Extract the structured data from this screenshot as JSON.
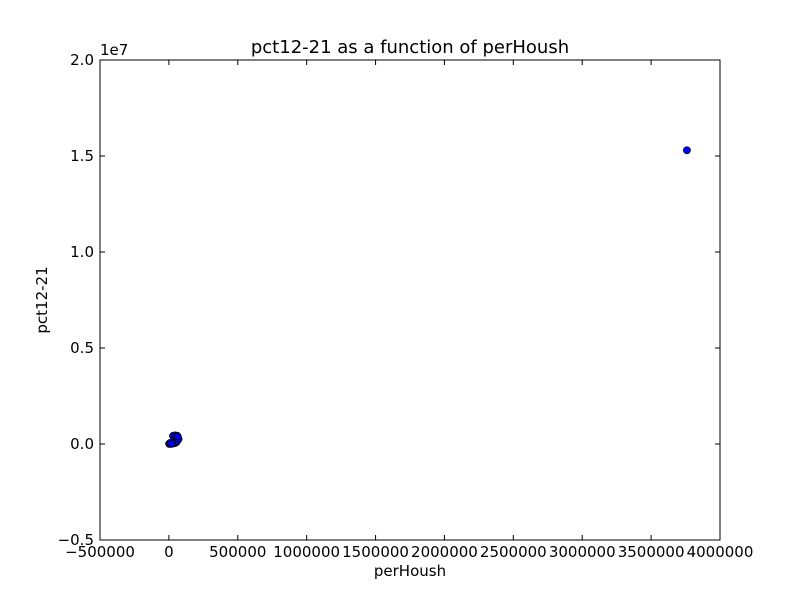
{
  "chart_data": {
    "type": "scatter",
    "title": "pct12-21 as a function of perHoush",
    "xlabel": "perHoush",
    "ylabel": "pct12-21",
    "xlim": [
      -500000,
      4000000
    ],
    "ylim": [
      -5000000,
      20000000
    ],
    "x_ticks": [
      -500000,
      0,
      500000,
      1000000,
      1500000,
      2000000,
      2500000,
      3000000,
      3500000,
      4000000
    ],
    "x_tick_labels": [
      "−500000",
      "0",
      "500000",
      "1000000",
      "1500000",
      "2000000",
      "2500000",
      "3000000",
      "3500000",
      "4000000"
    ],
    "y_ticks": [
      -5000000,
      0,
      5000000,
      10000000,
      15000000,
      20000000
    ],
    "y_tick_labels": [
      "−0.5",
      "0.0",
      "0.5",
      "1.0",
      "1.5",
      "2.0"
    ],
    "y_offset_label": "1e7",
    "grid": false,
    "marker_color": "#0000ff",
    "marker_edge_color": "#000000",
    "series": [
      {
        "points": [
          {
            "x": 2000,
            "y": 10000
          },
          {
            "x": 5000,
            "y": 20000
          },
          {
            "x": 8000,
            "y": 5000
          },
          {
            "x": 12000,
            "y": 30000
          },
          {
            "x": 15000,
            "y": 15000
          },
          {
            "x": 20000,
            "y": 40000
          },
          {
            "x": 25000,
            "y": 60000
          },
          {
            "x": 30000,
            "y": 25000
          },
          {
            "x": 35000,
            "y": 80000
          },
          {
            "x": 40000,
            "y": 120000
          },
          {
            "x": 45000,
            "y": 50000
          },
          {
            "x": 50000,
            "y": 200000
          },
          {
            "x": 55000,
            "y": 100000
          },
          {
            "x": 60000,
            "y": 150000
          },
          {
            "x": 65000,
            "y": 300000
          },
          {
            "x": 70000,
            "y": 250000
          },
          {
            "x": 30000,
            "y": 420000
          },
          {
            "x": 45000,
            "y": 450000
          },
          {
            "x": 60000,
            "y": 430000
          },
          {
            "x": 65000,
            "y": 380000
          },
          {
            "x": 10000,
            "y": 60000
          },
          {
            "x": 18000,
            "y": 8000
          },
          {
            "x": 3760000,
            "y": 15300000
          }
        ]
      }
    ]
  }
}
